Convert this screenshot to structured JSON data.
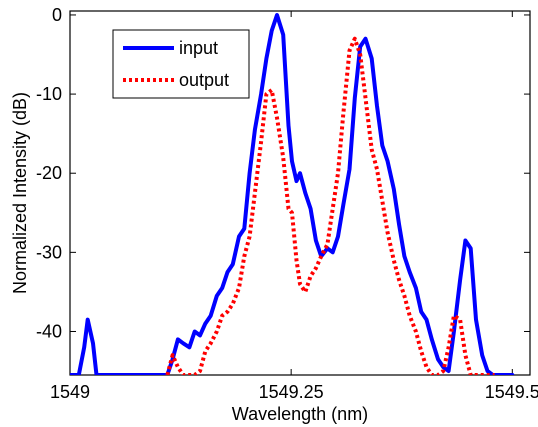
{
  "chart_data": {
    "type": "line",
    "title": "",
    "xlabel": "Wavelength (nm)",
    "ylabel": "Normalized Intensity (dB)",
    "xlim": [
      1549,
      1549.52
    ],
    "ylim": [
      -45.5,
      0.5
    ],
    "x_ticks": [
      1549,
      1549.25,
      1549.5
    ],
    "x_tick_labels": [
      "1549",
      "1549.25",
      "1549.5"
    ],
    "y_ticks": [
      0,
      -10,
      -20,
      -30,
      -40
    ],
    "y_tick_labels": [
      "0",
      "-10",
      "-20",
      "-30",
      "-40"
    ],
    "grid": false,
    "legend_position": "top-left",
    "series": [
      {
        "name": "input",
        "color": "#0000ff",
        "style": "solid",
        "x": [
          1549.0,
          1549.01,
          1549.016,
          1549.02,
          1549.026,
          1549.03,
          1549.037,
          1549.1,
          1549.11,
          1549.116,
          1549.122,
          1549.128,
          1549.135,
          1549.141,
          1549.147,
          1549.153,
          1549.159,
          1549.166,
          1549.172,
          1549.178,
          1549.184,
          1549.191,
          1549.197,
          1549.203,
          1549.209,
          1549.216,
          1549.222,
          1549.228,
          1549.234,
          1549.241,
          1549.247,
          1549.251,
          1549.256,
          1549.26,
          1549.266,
          1549.272,
          1549.278,
          1549.284,
          1549.291,
          1549.297,
          1549.303,
          1549.309,
          1549.316,
          1549.322,
          1549.328,
          1549.334,
          1549.341,
          1549.347,
          1549.353,
          1549.359,
          1549.366,
          1549.372,
          1549.378,
          1549.384,
          1549.391,
          1549.397,
          1549.403,
          1549.409,
          1549.416,
          1549.422,
          1549.428,
          1549.434,
          1549.441,
          1549.447,
          1549.453,
          1549.459,
          1549.466,
          1549.472,
          1549.478,
          1549.484,
          1549.491,
          1549.5
        ],
        "y": [
          -45.5,
          -45.5,
          -42.0,
          -38.5,
          -41.5,
          -45.5,
          -45.5,
          -45.5,
          -45.5,
          -43.5,
          -41.0,
          -41.5,
          -42.0,
          -40.0,
          -40.5,
          -39.0,
          -38.0,
          -35.5,
          -34.5,
          -32.5,
          -31.5,
          -28.0,
          -27.0,
          -20.0,
          -14.5,
          -10.0,
          -5.5,
          -2.0,
          0.0,
          -2.5,
          -14.0,
          -18.5,
          -21.0,
          -20.0,
          -22.5,
          -24.5,
          -28.5,
          -30.5,
          -29.5,
          -30.0,
          -28.0,
          -24.0,
          -19.5,
          -10.5,
          -4.0,
          -3.0,
          -5.5,
          -11.5,
          -16.5,
          -18.5,
          -22.0,
          -26.5,
          -30.5,
          -32.5,
          -34.5,
          -37.5,
          -38.5,
          -41.0,
          -43.5,
          -44.5,
          -45.0,
          -40.0,
          -33.5,
          -28.5,
          -29.5,
          -38.5,
          -43.0,
          -45.0,
          -45.5,
          -45.5,
          -45.5,
          -45.5
        ]
      },
      {
        "name": "output",
        "color": "#ff0000",
        "style": "dotted",
        "x": [
          1549.11,
          1549.116,
          1549.122,
          1549.128,
          1549.135,
          1549.141,
          1549.147,
          1549.153,
          1549.159,
          1549.166,
          1549.172,
          1549.178,
          1549.184,
          1549.191,
          1549.197,
          1549.203,
          1549.209,
          1549.216,
          1549.222,
          1549.228,
          1549.234,
          1549.241,
          1549.247,
          1549.251,
          1549.256,
          1549.26,
          1549.266,
          1549.272,
          1549.278,
          1549.284,
          1549.291,
          1549.297,
          1549.303,
          1549.309,
          1549.316,
          1549.322,
          1549.328,
          1549.334,
          1549.341,
          1549.347,
          1549.353,
          1549.359,
          1549.366,
          1549.372,
          1549.378,
          1549.384,
          1549.391,
          1549.397,
          1549.403,
          1549.409,
          1549.416,
          1549.422,
          1549.428,
          1549.434,
          1549.441,
          1549.447,
          1549.453,
          1549.459,
          1549.466,
          1549.472,
          1549.48
        ],
        "y": [
          -45.5,
          -43.0,
          -44.5,
          -45.5,
          -45.5,
          -45.5,
          -45.0,
          -42.5,
          -41.5,
          -40.0,
          -38.0,
          -37.5,
          -36.5,
          -34.5,
          -30.5,
          -28.0,
          -22.5,
          -16.0,
          -10.0,
          -9.5,
          -13.0,
          -18.0,
          -24.5,
          -25.0,
          -31.0,
          -34.0,
          -35.0,
          -33.0,
          -32.0,
          -30.5,
          -29.0,
          -24.5,
          -20.0,
          -12.5,
          -4.5,
          -3.0,
          -5.0,
          -10.5,
          -17.0,
          -19.5,
          -23.5,
          -27.5,
          -31.0,
          -33.5,
          -35.5,
          -38.0,
          -40.0,
          -42.5,
          -44.5,
          -45.5,
          -45.5,
          -45.0,
          -42.0,
          -38.0,
          -38.5,
          -43.0,
          -45.5,
          -45.5,
          -45.5,
          -45.5,
          -45.5
        ]
      }
    ]
  }
}
